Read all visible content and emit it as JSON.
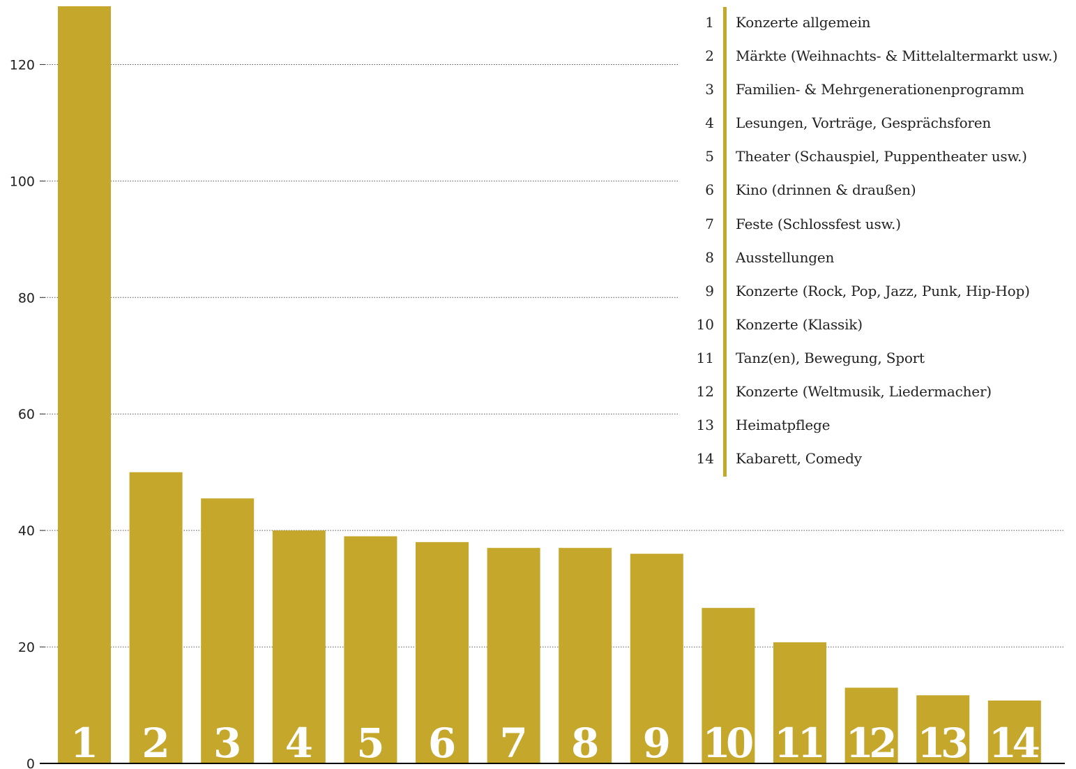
{
  "chart_data": {
    "type": "bar",
    "categories": [
      "1",
      "2",
      "3",
      "4",
      "5",
      "6",
      "7",
      "8",
      "9",
      "10",
      "11",
      "12",
      "13",
      "14"
    ],
    "values": [
      130,
      50,
      45.5,
      40,
      39,
      38,
      37,
      37,
      36,
      26.7,
      20.8,
      13,
      11.7,
      10.8
    ],
    "ylim": [
      0,
      130
    ],
    "yticks": [
      0,
      20,
      40,
      60,
      80,
      100,
      120
    ],
    "grid": true,
    "bar_color": "#c4a72b",
    "legend": [
      {
        "num": "1",
        "label": "Konzerte allgemein"
      },
      {
        "num": "2",
        "label": "Märkte (Weihnachts- & Mittelaltermarkt usw.)"
      },
      {
        "num": "3",
        "label": "Familien- & Mehrgenerationenprogramm"
      },
      {
        "num": "4",
        "label": "Lesungen, Vorträge, Gesprächsforen"
      },
      {
        "num": "5",
        "label": "Theater (Schauspiel, Puppentheater usw.)"
      },
      {
        "num": "6",
        "label": "Kino (drinnen & draußen)"
      },
      {
        "num": "7",
        "label": "Feste (Schlossfest usw.)"
      },
      {
        "num": "8",
        "label": "Ausstellungen"
      },
      {
        "num": "9",
        "label": "Konzerte (Rock, Pop, Jazz, Punk, Hip-Hop)"
      },
      {
        "num": "10",
        "label": "Konzerte (Klassik)"
      },
      {
        "num": "11",
        "label": "Tanz(en), Bewegung, Sport"
      },
      {
        "num": "12",
        "label": "Konzerte (Weltmusik, Liedermacher)"
      },
      {
        "num": "13",
        "label": "Heimatpflege"
      },
      {
        "num": "14",
        "label": "Kabarett, Comedy"
      }
    ]
  }
}
